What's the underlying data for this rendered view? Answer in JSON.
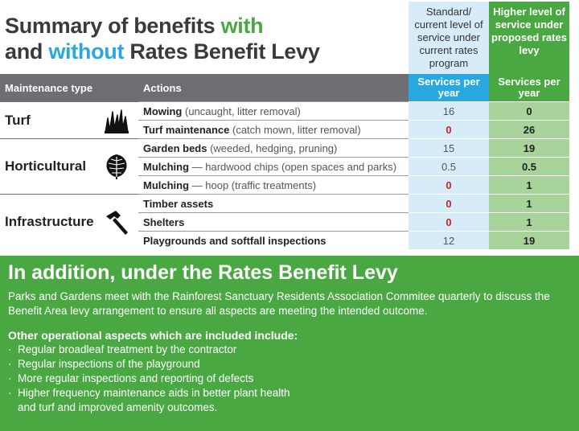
{
  "title": {
    "line1_prefix": "Summary of benefits ",
    "line1_highlight": "with",
    "line2_prefix": "and ",
    "line2_highlight": "without",
    "line2_suffix": " Rates Benefit Levy"
  },
  "column_headers": {
    "standard": "Standard/ current level of service under current rates program",
    "higher": "Higher level of service under proposed rates levy"
  },
  "table_header": {
    "maintenance_type": "Maintenance type",
    "actions": "Actions",
    "services_std": "Services per year",
    "services_hi": "Services per year"
  },
  "groups": [
    {
      "label": "Turf",
      "icon": "grass-icon"
    },
    {
      "label": "Horticultural",
      "icon": "leaf-icon"
    },
    {
      "label": "Infrastructure",
      "icon": "hammer-icon"
    }
  ],
  "rows": [
    {
      "action_bold": "Mowing",
      "action_detail": " (uncaught, litter removal)",
      "standard": "16",
      "higher": "0"
    },
    {
      "action_bold": "Turf maintenance",
      "action_detail": " (catch mown, litter removal)",
      "standard": "0",
      "higher": "26"
    },
    {
      "action_bold": "Garden beds",
      "action_detail": " (weeded, hedging, pruning)",
      "standard": "15",
      "higher": "19"
    },
    {
      "action_bold": "Mulching",
      "action_detail": " — hardwood chips (open spaces and parks)",
      "standard": "0.5",
      "higher": "0.5"
    },
    {
      "action_bold": "Mulching",
      "action_detail": " — hoop (traffic treatments)",
      "standard": "0",
      "higher": "1"
    },
    {
      "action_bold": "Timber assets",
      "action_detail": "",
      "standard": "0",
      "higher": "1"
    },
    {
      "action_bold": "Shelters",
      "action_detail": "",
      "standard": "0",
      "higher": "1"
    },
    {
      "action_bold": "Playgrounds and softfall inspections",
      "action_detail": "",
      "standard": "12",
      "higher": "19"
    }
  ],
  "colors": {
    "green": "#4aa843",
    "blue": "#29a8e0",
    "red": "#d11f1f",
    "grey": "#6d6e71"
  },
  "addition": {
    "title": "In addition, under the Rates Benefit Levy",
    "text": "Parks and Gardens meet with the Rainforest Sanctuary Residents Association Commitee quarterly to discuss the Benefit Area levy arrangement to ensure all aspects are meeting the intended outcome.",
    "aspects_heading": "Other operational aspects which are included include:",
    "aspects": [
      "Regular broadleaf treatment by the contractor",
      "Regular inspections of the playground",
      "More regular inspections and reporting of defects",
      "Higher frequency maintenance aids in better plant health",
      "and turf and improved amenity outcomes."
    ]
  }
}
